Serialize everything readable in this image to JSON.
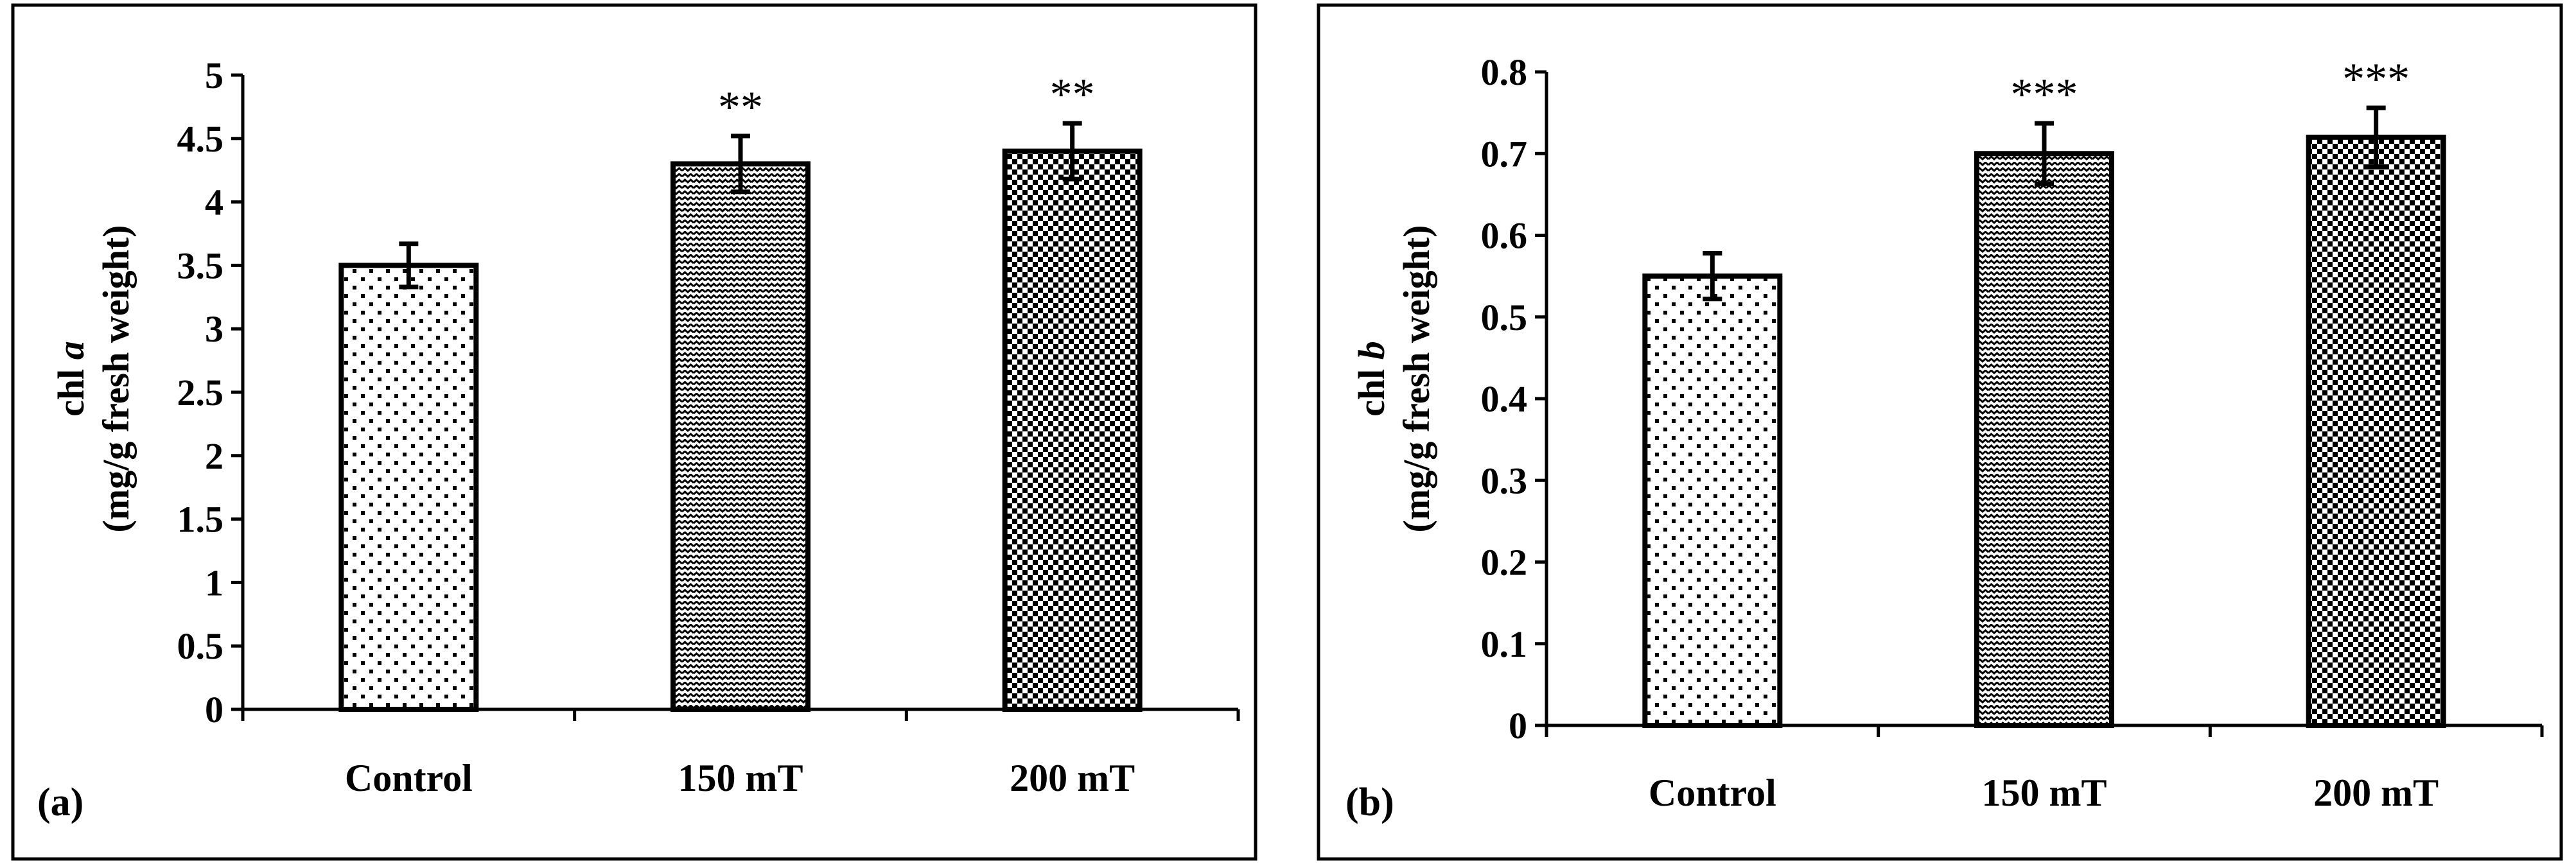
{
  "chart_data": [
    {
      "type": "bar",
      "panel_label": "(a)",
      "ylabel_main": "chl",
      "ylabel_var": "a",
      "ylabel_unit": "(mg/g fresh weight)",
      "categories": [
        "Control",
        "150 mT",
        "200 mT"
      ],
      "values": [
        3.5,
        4.3,
        4.4
      ],
      "errors": [
        0.17,
        0.22,
        0.22
      ],
      "significance": [
        "",
        "**",
        "**"
      ],
      "patterns": [
        "dots",
        "zigzag",
        "checker"
      ],
      "ylim": [
        0,
        5
      ],
      "yticks": [
        "0",
        "0.5",
        "1",
        "1.5",
        "2",
        "2.5",
        "3",
        "3.5",
        "4",
        "4.5",
        "5"
      ],
      "ytick_values": [
        0,
        0.5,
        1,
        1.5,
        2,
        2.5,
        3,
        3.5,
        4,
        4.5,
        5
      ]
    },
    {
      "type": "bar",
      "panel_label": "(b)",
      "ylabel_main": "chl",
      "ylabel_var": "b",
      "ylabel_unit": "(mg/g fresh weight)",
      "categories": [
        "Control",
        "150 mT",
        "200 mT"
      ],
      "values": [
        0.55,
        0.7,
        0.72
      ],
      "errors": [
        0.028,
        0.037,
        0.036
      ],
      "significance": [
        "",
        "***",
        "***"
      ],
      "patterns": [
        "dots",
        "zigzag",
        "checker"
      ],
      "ylim": [
        0,
        0.8
      ],
      "yticks": [
        "0",
        "0.1",
        "0.2",
        "0.3",
        "0.4",
        "0.5",
        "0.6",
        "0.7",
        "0.8"
      ],
      "ytick_values": [
        0,
        0.1,
        0.2,
        0.3,
        0.4,
        0.5,
        0.6,
        0.7,
        0.8
      ]
    }
  ]
}
